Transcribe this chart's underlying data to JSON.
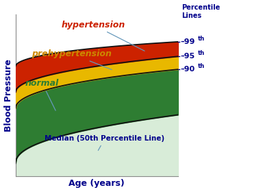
{
  "xlabel": "Age (years)",
  "ylabel": "Blood Pressure",
  "xlabel_color": "#00008B",
  "ylabel_color": "#00008B",
  "bg_color": "#ffffff",
  "percentile_labels": [
    "99th",
    "95th",
    "90th"
  ],
  "percentile_label_color": "#00008B",
  "percentile_header": "Percentile\nLines",
  "percentile_header_color": "#00008B",
  "zone_hypertension_color": "#CC2200",
  "zone_prehypertension_color": "#E8B800",
  "zone_normal_color": "#2E7D32",
  "zone_below_color": "#D8ECD8",
  "label_hypertension": "hypertension",
  "label_prehypertension": "prehypertension",
  "label_normal": "normal",
  "label_median": "Median (50th Percentile Line)",
  "label_hypertension_color": "#CC2200",
  "label_prehypertension_color": "#CC8800",
  "label_normal_color": "#2E7D32",
  "label_median_color": "#00008B",
  "line_color": "#111111"
}
